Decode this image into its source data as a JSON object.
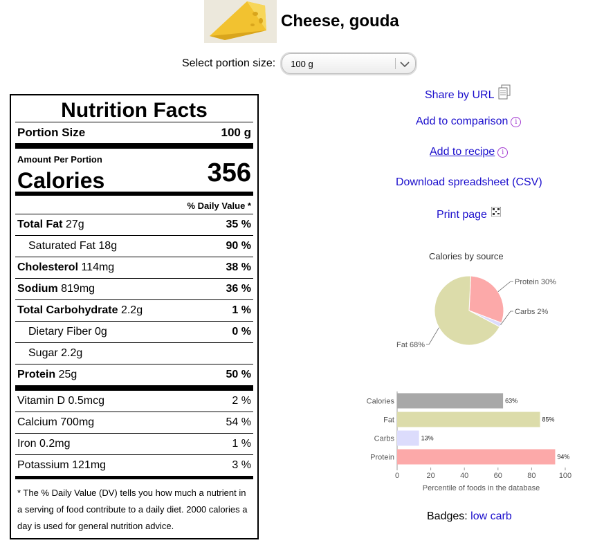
{
  "food": {
    "title": "Cheese, gouda",
    "image_alt": "cheese wedge"
  },
  "portion": {
    "label": "Select portion size:",
    "selected": "100 g"
  },
  "label": {
    "title": "Nutrition Facts",
    "portion_size_label": "Portion Size",
    "portion_size_value": "100 g",
    "amount_per_portion": "Amount Per Portion",
    "calories_label": "Calories",
    "calories_value": "356",
    "dv_header": "% Daily Value *",
    "nutrients": [
      {
        "name": "Total Fat",
        "amount": "27g",
        "dv": "35 %",
        "bold": true,
        "indent": false
      },
      {
        "name": "Saturated Fat",
        "amount": "18g",
        "dv": "90 %",
        "bold": false,
        "indent": true
      },
      {
        "name": "Cholesterol",
        "amount": "114mg",
        "dv": "38 %",
        "bold": true,
        "indent": false
      },
      {
        "name": "Sodium",
        "amount": "819mg",
        "dv": "36 %",
        "bold": true,
        "indent": false
      },
      {
        "name": "Total Carbohydrate",
        "amount": "2.2g",
        "dv": "1 %",
        "bold": true,
        "indent": false
      },
      {
        "name": "Dietary Fiber",
        "amount": "0g",
        "dv": "0 %",
        "bold": false,
        "indent": true
      },
      {
        "name": "Sugar",
        "amount": "2.2g",
        "dv": "",
        "bold": false,
        "indent": true
      },
      {
        "name": "Protein",
        "amount": "25g",
        "dv": "50 %",
        "bold": true,
        "indent": false
      }
    ],
    "vitamins": [
      {
        "name": "Vitamin D",
        "amount": "0.5mcg",
        "dv": "2 %"
      },
      {
        "name": "Calcium",
        "amount": "700mg",
        "dv": "54 %"
      },
      {
        "name": "Iron",
        "amount": "0.2mg",
        "dv": "1 %"
      },
      {
        "name": "Potassium",
        "amount": "121mg",
        "dv": "3 %"
      }
    ],
    "footnote": "* The % Daily Value (DV) tells you how much a nutrient in a serving of food contribute to a daily diet. 2000 calories a day is used for general nutrition advice."
  },
  "actions": {
    "share": "Share by URL",
    "compare": "Add to comparison",
    "recipe": "Add to recipe",
    "download": "Download spreadsheet (CSV)",
    "print": "Print page"
  },
  "chart_data": [
    {
      "type": "pie",
      "title": "Calories by source",
      "slices": [
        {
          "label": "Protein 30%",
          "value": 30,
          "color": "#fca9a9"
        },
        {
          "label": "Carbs 2%",
          "value": 2,
          "color": "#dcdcfc"
        },
        {
          "label": "Fat 68%",
          "value": 68,
          "color": "#dcdcaa"
        }
      ]
    },
    {
      "type": "bar",
      "orientation": "horizontal",
      "categories": [
        "Calories",
        "Fat",
        "Carbs",
        "Protein"
      ],
      "values": [
        63,
        85,
        13,
        94
      ],
      "value_labels": [
        "63%",
        "85%",
        "13%",
        "94%"
      ],
      "colors": [
        "#a8a8a8",
        "#dcdcaa",
        "#dcdcfc",
        "#fca9a9"
      ],
      "xlabel": "Percentile of foods in the database",
      "xlim": [
        0,
        100
      ],
      "xticks": [
        "0",
        "20",
        "40",
        "60",
        "80",
        "100"
      ]
    }
  ],
  "badges": {
    "label": "Badges:",
    "items": [
      "low carb"
    ]
  }
}
